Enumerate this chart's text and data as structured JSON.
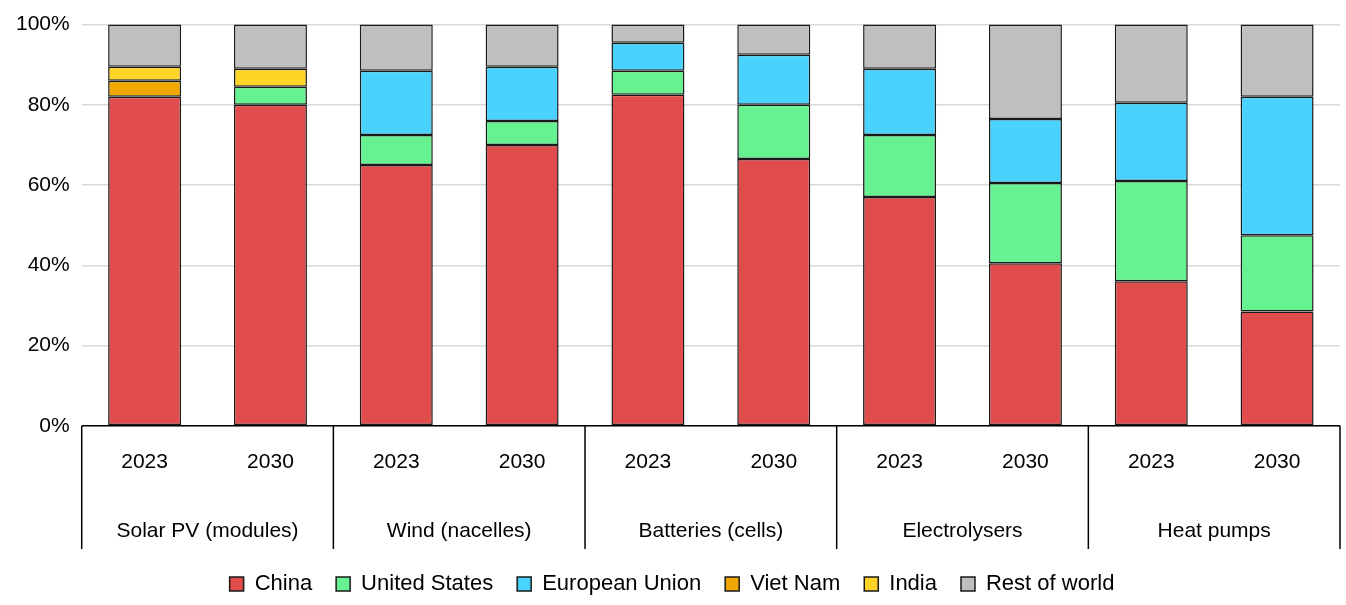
{
  "chart_data": {
    "type": "bar",
    "stacked": true,
    "categories": [
      "2023",
      "2030",
      "2023",
      "2030",
      "2023",
      "2030",
      "2023",
      "2030",
      "2023",
      "2030"
    ],
    "annotations": [
      "Solar PV (modules)",
      "Wind (nacelles)",
      "Batteries (cells)",
      "Electrolysers",
      "Heat pumps"
    ],
    "series": [
      {
        "name": "China",
        "color": "#e04b4b",
        "values": [
          82,
          80,
          65,
          70,
          82.5,
          66.5,
          57,
          40.5,
          36,
          28.5
        ]
      },
      {
        "name": "United States",
        "color": "#66f291",
        "values": [
          null,
          4.5,
          7.5,
          6,
          6,
          13.5,
          15.5,
          20,
          25,
          19
        ]
      },
      {
        "name": "European Union",
        "color": "#4ad2ff",
        "values": [
          null,
          null,
          16,
          13.5,
          7,
          12.5,
          16.5,
          16,
          19.5,
          34.5
        ]
      },
      {
        "name": "Viet Nam",
        "color": "#f0a800",
        "values": [
          4,
          null,
          null,
          null,
          null,
          null,
          null,
          null,
          null,
          null
        ]
      },
      {
        "name": "India",
        "color": "#ffd426",
        "values": [
          3.5,
          4.5,
          null,
          null,
          null,
          null,
          null,
          null,
          null,
          null
        ]
      },
      {
        "name": "Rest of world",
        "color": "#bfbfbf",
        "values": [
          10.5,
          11,
          11.5,
          10.5,
          4.5,
          7.5,
          11,
          23.5,
          19.5,
          18
        ]
      }
    ],
    "ylim": [
      0,
      100
    ],
    "yticks": [
      {
        "value": 0,
        "label": "0%"
      },
      {
        "value": 20,
        "label": "20%"
      },
      {
        "value": 40,
        "label": "40%"
      },
      {
        "value": 60,
        "label": "60%"
      },
      {
        "value": 80,
        "label": "80%"
      },
      {
        "value": 100,
        "label": "100%"
      }
    ],
    "grid": "y",
    "legend": "bottom"
  }
}
